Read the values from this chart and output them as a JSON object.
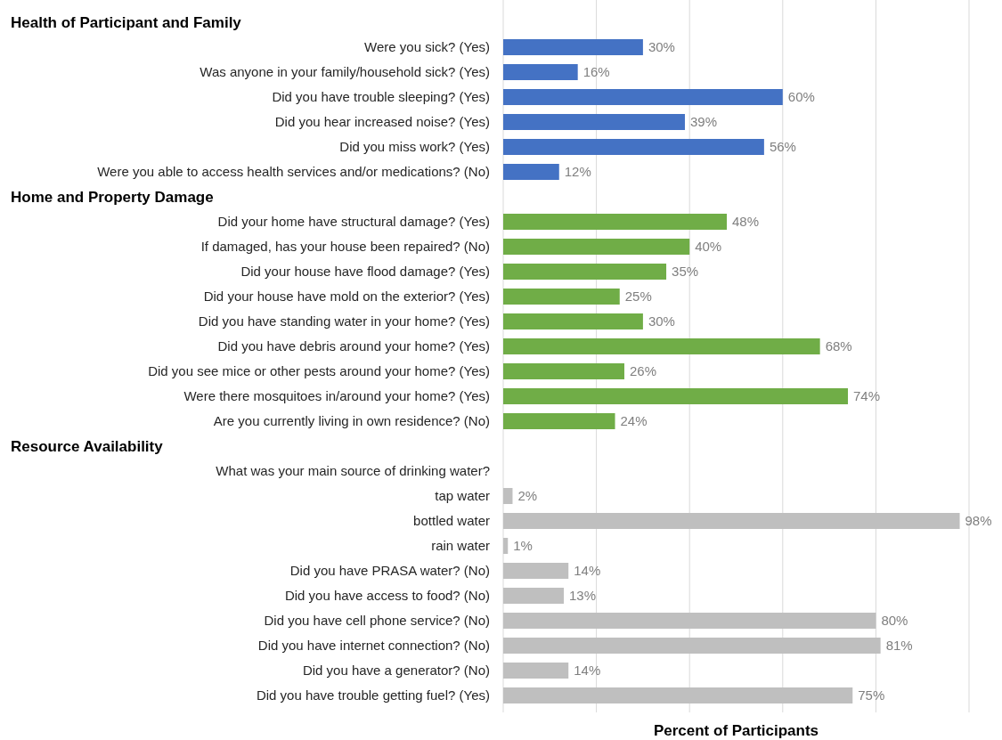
{
  "chart_data": {
    "type": "bar",
    "orientation": "horizontal",
    "xlabel": "Percent of Participants",
    "annotations": [
      "Health of Participant and Family",
      "Home and Property Damage",
      "Resource Availability"
    ],
    "categories": [
      null,
      "Were you sick? (Yes)",
      "Was anyone in your family/household sick? (Yes)",
      "Did you have trouble sleeping? (Yes)",
      "Did you hear increased noise? (Yes)",
      "Did you miss work? (Yes)",
      "Were you able to access health services and/or medications?  (No)",
      null,
      "Did your home have structural damage? (Yes)",
      "If damaged, has your house been repaired?  (No)",
      "Did your house have flood damage? (Yes)",
      "Did your house have mold on the exterior? (Yes)",
      "Did you have standing water in your home? (Yes)",
      "Did you have debris around your home? (Yes)",
      "Did you see mice or other pests around your home? (Yes)",
      "Were there mosquitoes in/around your home? (Yes)",
      "Are you currently living in own residence?  (No)",
      null,
      "What was your main source of drinking water?",
      "tap water",
      "bottled water",
      "rain water",
      "Did you have PRASA water? (No)",
      "Did you have access to food? (No)",
      "Did you have cell phone service? (No)",
      "Did you have internet connection?  (No)",
      "Did you have a generator?  (No)",
      "Did you have trouble getting fuel? (Yes)"
    ],
    "values": [
      null,
      30,
      16,
      60,
      39,
      56,
      12,
      null,
      48,
      40,
      35,
      25,
      30,
      68,
      26,
      74,
      24,
      null,
      null,
      2,
      98,
      1,
      14,
      13,
      80,
      81,
      14,
      75
    ],
    "value_labels": [
      null,
      "30%",
      "16%",
      "60%",
      "39%",
      "56%",
      "12%",
      null,
      "48%",
      "40%",
      "35%",
      "25%",
      "30%",
      "68%",
      "26%",
      "74%",
      "24%",
      null,
      null,
      "2%",
      "98%",
      "1%",
      "14%",
      "13%",
      "80%",
      "81%",
      "14%",
      "75%"
    ],
    "colors": [
      null,
      "#4472c4",
      "#4472c4",
      "#4472c4",
      "#4472c4",
      "#4472c4",
      "#4472c4",
      null,
      "#70ad47",
      "#70ad47",
      "#70ad47",
      "#70ad47",
      "#70ad47",
      "#70ad47",
      "#70ad47",
      "#70ad47",
      "#70ad47",
      null,
      null,
      "#bfbfbf",
      "#bfbfbf",
      "#bfbfbf",
      "#bfbfbf",
      "#bfbfbf",
      "#bfbfbf",
      "#bfbfbf",
      "#bfbfbf",
      "#bfbfbf"
    ],
    "xlim": [
      0,
      100
    ],
    "xticks": [
      {
        "value": 0,
        "label": null
      },
      {
        "value": 20,
        "label": null
      },
      {
        "value": 40,
        "label": null
      },
      {
        "value": 60,
        "label": null
      },
      {
        "value": 80,
        "label": null
      },
      {
        "value": 100,
        "label": null
      }
    ],
    "grid": "x",
    "tick_labels": "y"
  }
}
